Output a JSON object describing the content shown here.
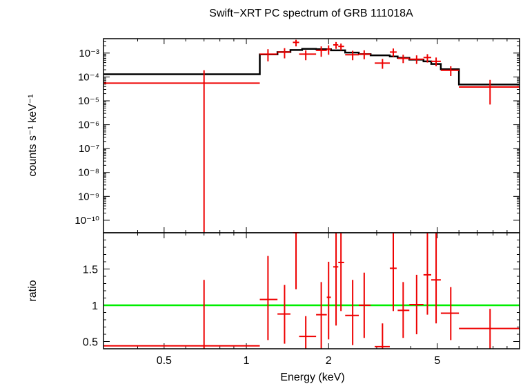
{
  "chart_data": [
    {
      "type": "scatter",
      "title": "Swift−XRT PC spectrum of GRB 111018A",
      "ylabel": "counts s⁻¹ keV⁻¹",
      "x_scale": "log",
      "y_scale": "log",
      "xlim": [
        0.3,
        10
      ],
      "ylim": [
        3e-11,
        0.004
      ],
      "y_tick_labels": [
        "10⁻³",
        "10⁻⁴",
        "10⁻⁵",
        "10⁻⁶",
        "10⁻⁷",
        "10⁻⁸",
        "10⁻⁹",
        "10⁻¹⁰"
      ],
      "data_color": "#ee0000",
      "model_color": "#000000",
      "points": [
        {
          "x": 0.7,
          "x_lo": 0.3,
          "x_hi": 1.12,
          "y": 5.5e-05,
          "y_lo": 3e-11,
          "y_hi": 0.00019
        },
        {
          "x": 1.2,
          "x_lo": 1.12,
          "x_hi": 1.3,
          "y": 0.0009,
          "y_lo": 0.00045,
          "y_hi": 0.00145
        },
        {
          "x": 1.38,
          "x_lo": 1.3,
          "x_hi": 1.45,
          "y": 0.0011,
          "y_lo": 0.0006,
          "y_hi": 0.0016
        },
        {
          "x": 1.52,
          "x_lo": 1.48,
          "x_hi": 1.56,
          "y": 0.0028,
          "y_lo": 0.0019,
          "y_hi": 0.0036
        },
        {
          "x": 1.65,
          "x_lo": 1.56,
          "x_hi": 1.8,
          "y": 0.0009,
          "y_lo": 0.0005,
          "y_hi": 0.0013
        },
        {
          "x": 1.88,
          "x_lo": 1.8,
          "x_hi": 1.97,
          "y": 0.0013,
          "y_lo": 0.0007,
          "y_hi": 0.0019
        },
        {
          "x": 2.0,
          "x_lo": 1.97,
          "x_hi": 2.04,
          "y": 0.00145,
          "y_lo": 0.00085,
          "y_hi": 0.0021
        },
        {
          "x": 2.13,
          "x_lo": 2.08,
          "x_hi": 2.17,
          "y": 0.0022,
          "y_lo": 0.0015,
          "y_hi": 0.0029
        },
        {
          "x": 2.22,
          "x_lo": 2.17,
          "x_hi": 2.28,
          "y": 0.0019,
          "y_lo": 0.0013,
          "y_hi": 0.0025
        },
        {
          "x": 2.45,
          "x_lo": 2.3,
          "x_hi": 2.58,
          "y": 0.00085,
          "y_lo": 0.0005,
          "y_hi": 0.00125
        },
        {
          "x": 2.7,
          "x_lo": 2.58,
          "x_hi": 2.85,
          "y": 0.0009,
          "y_lo": 0.00055,
          "y_hi": 0.0013
        },
        {
          "x": 3.15,
          "x_lo": 2.95,
          "x_hi": 3.35,
          "y": 0.00038,
          "y_lo": 0.00022,
          "y_hi": 0.00057
        },
        {
          "x": 3.45,
          "x_lo": 3.35,
          "x_hi": 3.55,
          "y": 0.0011,
          "y_lo": 0.0007,
          "y_hi": 0.00155
        },
        {
          "x": 3.75,
          "x_lo": 3.58,
          "x_hi": 3.95,
          "y": 0.0006,
          "y_lo": 0.00038,
          "y_hi": 0.00085
        },
        {
          "x": 4.2,
          "x_lo": 3.95,
          "x_hi": 4.45,
          "y": 0.00055,
          "y_lo": 0.00035,
          "y_hi": 0.0008
        },
        {
          "x": 4.6,
          "x_lo": 4.45,
          "x_hi": 4.75,
          "y": 0.00065,
          "y_lo": 0.0004,
          "y_hi": 0.0009
        },
        {
          "x": 4.95,
          "x_lo": 4.75,
          "x_hi": 5.15,
          "y": 0.00045,
          "y_lo": 0.00028,
          "y_hi": 0.00065
        },
        {
          "x": 5.6,
          "x_lo": 5.15,
          "x_hi": 6.0,
          "y": 0.00019,
          "y_lo": 0.00011,
          "y_hi": 0.00028
        },
        {
          "x": 7.8,
          "x_lo": 6.0,
          "x_hi": 10.0,
          "y": 3.8e-05,
          "y_lo": 7e-06,
          "y_hi": 7.5e-05
        }
      ],
      "model_steps": [
        {
          "x_lo": 0.3,
          "x_hi": 1.12,
          "y": 0.00013
        },
        {
          "x_lo": 1.12,
          "x_hi": 1.3,
          "y": 0.00088
        },
        {
          "x_lo": 1.3,
          "x_hi": 1.45,
          "y": 0.0011
        },
        {
          "x_lo": 1.45,
          "x_hi": 1.6,
          "y": 0.00135
        },
        {
          "x_lo": 1.6,
          "x_hi": 1.8,
          "y": 0.0015
        },
        {
          "x_lo": 1.8,
          "x_hi": 2.04,
          "y": 0.00145
        },
        {
          "x_lo": 2.04,
          "x_hi": 2.3,
          "y": 0.0013
        },
        {
          "x_lo": 2.3,
          "x_hi": 2.58,
          "y": 0.00105
        },
        {
          "x_lo": 2.58,
          "x_hi": 2.85,
          "y": 0.0009
        },
        {
          "x_lo": 2.85,
          "x_hi": 3.35,
          "y": 0.0008
        },
        {
          "x_lo": 3.35,
          "x_hi": 3.58,
          "y": 0.00072
        },
        {
          "x_lo": 3.58,
          "x_hi": 3.95,
          "y": 0.00063
        },
        {
          "x_lo": 3.95,
          "x_hi": 4.45,
          "y": 0.00053
        },
        {
          "x_lo": 4.45,
          "x_hi": 4.75,
          "y": 0.00045
        },
        {
          "x_lo": 4.75,
          "x_hi": 5.15,
          "y": 0.00035
        },
        {
          "x_lo": 5.15,
          "x_hi": 6.0,
          "y": 0.00021
        },
        {
          "x_lo": 6.0,
          "x_hi": 10.0,
          "y": 4.8e-05
        }
      ]
    },
    {
      "type": "scatter",
      "xlabel": "Energy (keV)",
      "ylabel": "ratio",
      "x_scale": "log",
      "xlim": [
        0.3,
        10
      ],
      "ylim": [
        0.4,
        2.0
      ],
      "x_ticks": [
        {
          "value": 0.5,
          "label": "0.5"
        },
        {
          "value": 1,
          "label": "1"
        },
        {
          "value": 2,
          "label": "2"
        },
        {
          "value": 5,
          "label": "5"
        }
      ],
      "y_ticks": [
        {
          "value": 0.5,
          "label": "0.5"
        },
        {
          "value": 1,
          "label": "1"
        },
        {
          "value": 1.5,
          "label": "1.5"
        }
      ],
      "reference_line": {
        "y": 1,
        "color": "#00ee00"
      },
      "data_color": "#ee0000",
      "points": [
        {
          "x": 0.7,
          "x_lo": 0.3,
          "x_hi": 1.12,
          "y": 0.44,
          "y_lo": 0.4,
          "y_hi": 1.35
        },
        {
          "x": 1.2,
          "x_lo": 1.12,
          "x_hi": 1.3,
          "y": 1.08,
          "y_lo": 0.52,
          "y_hi": 1.68
        },
        {
          "x": 1.38,
          "x_lo": 1.3,
          "x_hi": 1.45,
          "y": 0.88,
          "y_lo": 0.47,
          "y_hi": 1.28
        },
        {
          "x": 1.52,
          "x_lo": 1.48,
          "x_hi": 1.56,
          "y": 2.0,
          "y_lo": 1.22,
          "y_hi": 2.0
        },
        {
          "x": 1.65,
          "x_lo": 1.56,
          "x_hi": 1.8,
          "y": 0.57,
          "y_lo": 0.4,
          "y_hi": 0.85
        },
        {
          "x": 1.88,
          "x_lo": 1.8,
          "x_hi": 1.97,
          "y": 0.87,
          "y_lo": 0.4,
          "y_hi": 1.32
        },
        {
          "x": 2.0,
          "x_lo": 1.97,
          "x_hi": 2.04,
          "y": 1.11,
          "y_lo": 0.53,
          "y_hi": 1.6
        },
        {
          "x": 2.13,
          "x_lo": 2.08,
          "x_hi": 2.17,
          "y": 1.53,
          "y_lo": 0.72,
          "y_hi": 2.0
        },
        {
          "x": 2.22,
          "x_lo": 2.17,
          "x_hi": 2.28,
          "y": 1.59,
          "y_lo": 0.92,
          "y_hi": 2.0
        },
        {
          "x": 2.45,
          "x_lo": 2.3,
          "x_hi": 2.58,
          "y": 0.86,
          "y_lo": 0.45,
          "y_hi": 1.35
        },
        {
          "x": 2.7,
          "x_lo": 2.58,
          "x_hi": 2.85,
          "y": 1.0,
          "y_lo": 0.55,
          "y_hi": 1.45
        },
        {
          "x": 3.15,
          "x_lo": 2.95,
          "x_hi": 3.35,
          "y": 0.43,
          "y_lo": 0.4,
          "y_hi": 0.75
        },
        {
          "x": 3.45,
          "x_lo": 3.35,
          "x_hi": 3.55,
          "y": 1.51,
          "y_lo": 0.92,
          "y_hi": 2.0
        },
        {
          "x": 3.75,
          "x_lo": 3.58,
          "x_hi": 3.95,
          "y": 0.93,
          "y_lo": 0.55,
          "y_hi": 1.32
        },
        {
          "x": 4.2,
          "x_lo": 3.95,
          "x_hi": 4.45,
          "y": 1.01,
          "y_lo": 0.6,
          "y_hi": 1.42
        },
        {
          "x": 4.6,
          "x_lo": 4.45,
          "x_hi": 4.75,
          "y": 1.42,
          "y_lo": 0.87,
          "y_hi": 2.0
        },
        {
          "x": 4.95,
          "x_lo": 4.75,
          "x_hi": 5.15,
          "y": 1.35,
          "y_lo": 0.75,
          "y_hi": 2.0
        },
        {
          "x": 5.6,
          "x_lo": 5.15,
          "x_hi": 6.0,
          "y": 0.89,
          "y_lo": 0.52,
          "y_hi": 1.25
        },
        {
          "x": 7.8,
          "x_lo": 6.0,
          "x_hi": 10.0,
          "y": 0.68,
          "y_lo": 0.4,
          "y_hi": 0.95
        }
      ]
    }
  ]
}
